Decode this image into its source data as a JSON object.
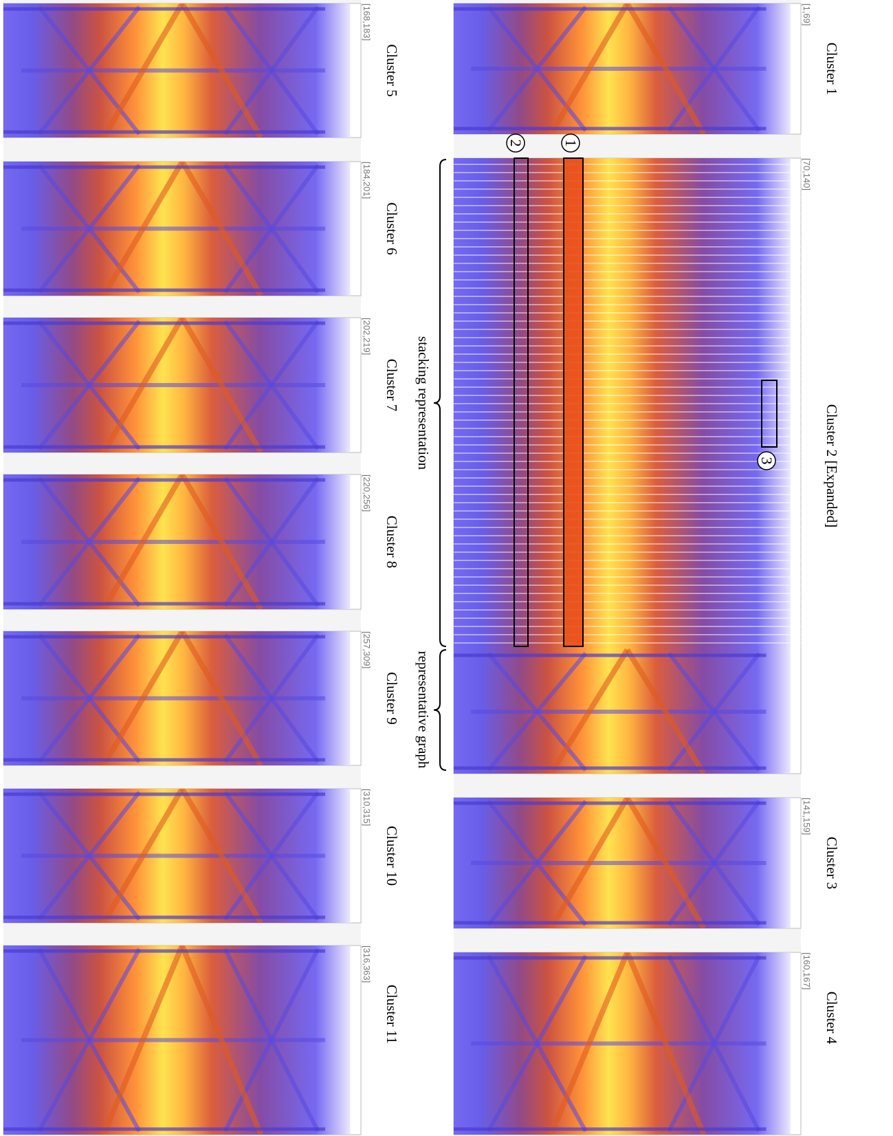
{
  "clusters": [
    {
      "title": "Cluster 1",
      "range": "[1,69]"
    },
    {
      "title": "Cluster 2 [Expanded]",
      "range": "[70,140]"
    },
    {
      "title": "Cluster 3",
      "range": "[141,159]"
    },
    {
      "title": "Cluster 4",
      "range": "[160,167]"
    },
    {
      "title": "Cluster 5",
      "range": "[168,183]"
    },
    {
      "title": "Cluster 6",
      "range": "[184,201]"
    },
    {
      "title": "Cluster 7",
      "range": "[202,219]"
    },
    {
      "title": "Cluster 8",
      "range": "[220,256]"
    },
    {
      "title": "Cluster 9",
      "range": "[257,309]"
    },
    {
      "title": "Cluster 10",
      "range": "[310,315]"
    },
    {
      "title": "Cluster 11",
      "range": "[316,363]"
    }
  ],
  "annotations": {
    "stacking": "stacking representation",
    "representative": "representative graph"
  },
  "markers": [
    "1",
    "2",
    "3"
  ]
}
